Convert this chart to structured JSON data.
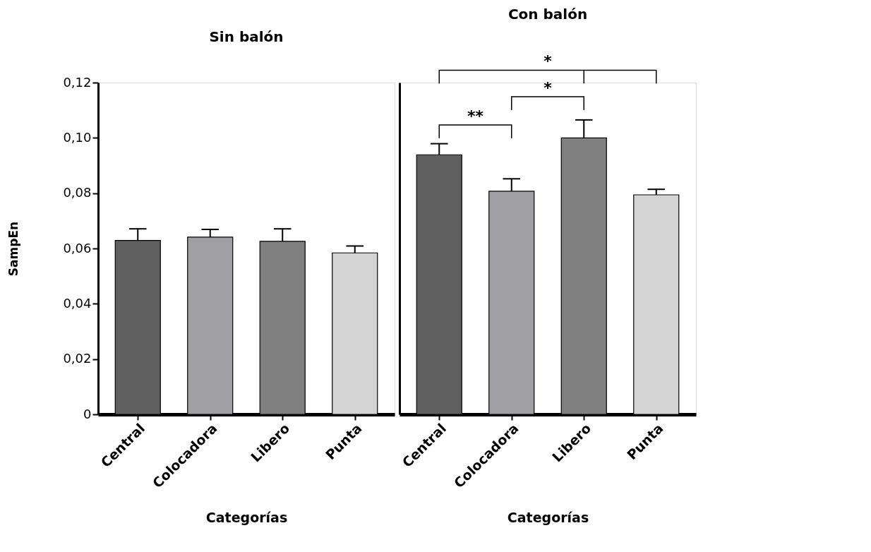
{
  "chart_data": [
    {
      "type": "bar",
      "title": "Sin balón",
      "xlabel": "Categorías",
      "ylabel": "SampEn",
      "categories": [
        "Central",
        "Colocadora",
        "Libero",
        "Punta"
      ],
      "values": [
        0.0629,
        0.0641,
        0.0626,
        0.0584
      ],
      "colors": [
        "#606060",
        "#a0a0a4",
        "#808080",
        "#d4d4d4"
      ],
      "errors": [
        [
          0.0629,
          0.0671
        ],
        [
          0.0641,
          0.0669
        ],
        [
          0.0626,
          0.0671
        ],
        [
          0.0584,
          0.0609
        ]
      ],
      "ylim": [
        0,
        0.12
      ],
      "yticks": [
        {
          "value": 0,
          "label": "0"
        },
        {
          "value": 0.02,
          "label": "0,02"
        },
        {
          "value": 0.04,
          "label": "0,04"
        },
        {
          "value": 0.06,
          "label": "0,06"
        },
        {
          "value": 0.08,
          "label": "0,08"
        },
        {
          "value": 0.1,
          "label": "0,10"
        },
        {
          "value": 0.12,
          "label": "0,12"
        }
      ],
      "grid": false,
      "legend": false
    },
    {
      "type": "bar",
      "title": "Con balón",
      "xlabel": "Categorías",
      "categories": [
        "Central",
        "Colocadora",
        "Libero",
        "Punta"
      ],
      "values": [
        0.0939,
        0.0807,
        0.1,
        0.0794
      ],
      "colors": [
        "#606060",
        "#a0a0a4",
        "#808080",
        "#d4d4d4"
      ],
      "errors": [
        [
          0.0939,
          0.0979
        ],
        [
          0.0807,
          0.0852
        ],
        [
          0.1,
          0.1065
        ],
        [
          0.0794,
          0.0814
        ]
      ],
      "ylim": [
        0,
        0.12
      ],
      "annotations": [
        "**",
        "*",
        "*"
      ],
      "tick_labels": "x",
      "grid": false,
      "legend": false
    }
  ]
}
